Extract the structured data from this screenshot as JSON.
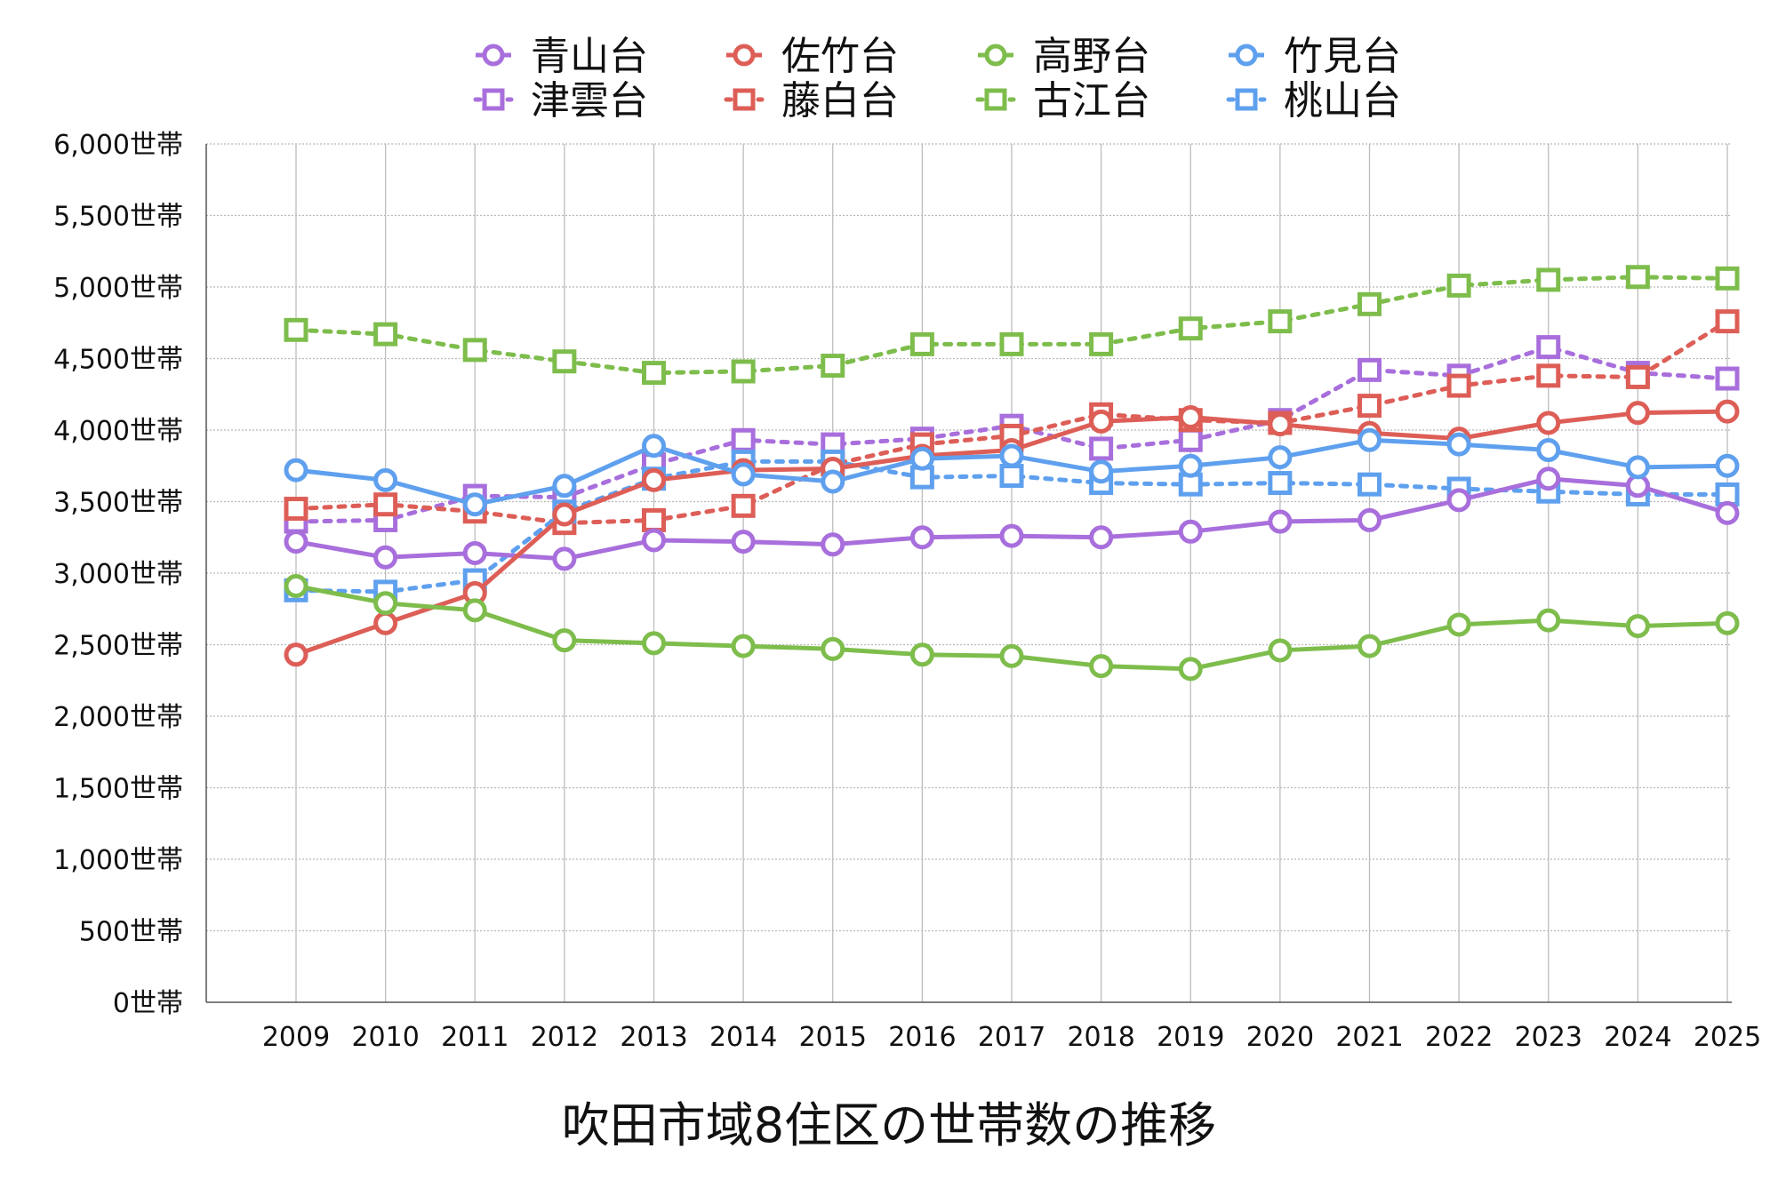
{
  "chart_data": {
    "type": "line",
    "title": "吹田市域8住区の世帯数の推移",
    "xlabel": "",
    "ylabel": "",
    "y_unit_suffix": "世帯",
    "ylim": [
      0,
      6000
    ],
    "y_ticks": [
      "0世帯",
      "500世帯",
      "1,000世帯",
      "1,500世帯",
      "2,000世帯",
      "2,500世帯",
      "3,000世帯",
      "3,500世帯",
      "4,000世帯",
      "4,500世帯",
      "5,000世帯",
      "5,500世帯",
      "6,000世帯"
    ],
    "categories": [
      "2009",
      "2010",
      "2011",
      "2012",
      "2013",
      "2014",
      "2015",
      "2016",
      "2017",
      "2018",
      "2019",
      "2020",
      "2021",
      "2022",
      "2023",
      "2024",
      "2025"
    ],
    "grid": true,
    "legend_placement": "top",
    "series": [
      {
        "name": "青山台",
        "marker": "circle",
        "line": "solid",
        "color": "#a86fdc",
        "values": [
          3220,
          3110,
          3140,
          3100,
          3230,
          3220,
          3200,
          3250,
          3260,
          3250,
          3290,
          3360,
          3370,
          3510,
          3660,
          3610,
          3420
        ]
      },
      {
        "name": "佐竹台",
        "marker": "circle",
        "line": "solid",
        "color": "#dd5e57",
        "values": [
          2430,
          2650,
          2860,
          3410,
          3650,
          3720,
          3730,
          3820,
          3860,
          4060,
          4090,
          4040,
          3980,
          3940,
          4050,
          4120,
          4130
        ]
      },
      {
        "name": "高野台",
        "marker": "circle",
        "line": "solid",
        "color": "#7ebd4c",
        "values": [
          2910,
          2790,
          2740,
          2530,
          2510,
          2490,
          2470,
          2430,
          2420,
          2350,
          2330,
          2460,
          2490,
          2640,
          2670,
          2630,
          2650
        ]
      },
      {
        "name": "竹見台",
        "marker": "circle",
        "line": "solid",
        "color": "#5fa0ee",
        "values": [
          3720,
          3650,
          3480,
          3610,
          3890,
          3690,
          3640,
          3800,
          3820,
          3710,
          3750,
          3810,
          3930,
          3900,
          3860,
          3740,
          3750
        ]
      },
      {
        "name": "津雲台",
        "marker": "square",
        "line": "dotted",
        "color": "#a86fdc",
        "values": [
          3360,
          3370,
          3540,
          3530,
          3760,
          3930,
          3900,
          3940,
          4030,
          3870,
          3930,
          4070,
          4420,
          4380,
          4580,
          4400,
          4360
        ]
      },
      {
        "name": "藤白台",
        "marker": "square",
        "line": "dotted",
        "color": "#dd5e57",
        "values": [
          3450,
          3480,
          3430,
          3350,
          3370,
          3470,
          3760,
          3900,
          3960,
          4110,
          4070,
          4050,
          4170,
          4310,
          4380,
          4370,
          4760
        ]
      },
      {
        "name": "古江台",
        "marker": "square",
        "line": "dotted",
        "color": "#7ebd4c",
        "values": [
          4700,
          4670,
          4560,
          4480,
          4400,
          4410,
          4450,
          4600,
          4600,
          4600,
          4710,
          4760,
          4880,
          5010,
          5050,
          5070,
          5060
        ]
      },
      {
        "name": "桃山台",
        "marker": "square",
        "line": "dotted",
        "color": "#5fa0ee",
        "values": [
          2880,
          2870,
          2950,
          3430,
          3660,
          3780,
          3780,
          3670,
          3680,
          3630,
          3620,
          3630,
          3620,
          3590,
          3570,
          3550,
          3550
        ]
      }
    ]
  }
}
